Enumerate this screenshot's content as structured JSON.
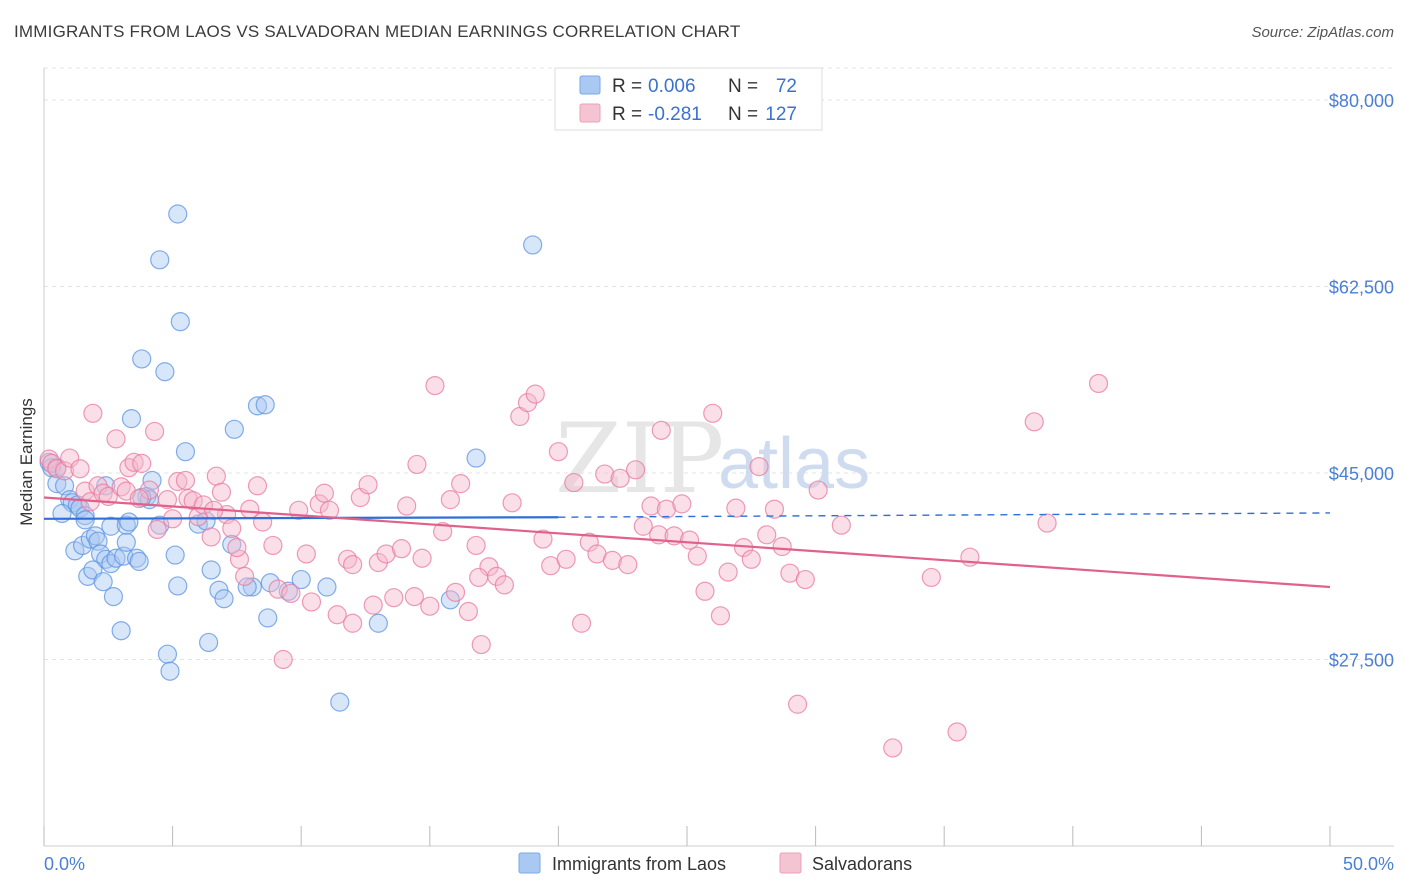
{
  "header": {
    "title": "IMMIGRANTS FROM LAOS VS SALVADORAN MEDIAN EARNINGS CORRELATION CHART",
    "source": "Source: ZipAtlas.com"
  },
  "watermark": {
    "zip": "ZIP",
    "atlas": "atlas"
  },
  "legend": {
    "rows": [
      {
        "r_label": "R =",
        "r_value": "0.006",
        "n_label": "N =",
        "n_value": "72",
        "color": "#a9c8f2"
      },
      {
        "r_label": "R =",
        "r_value": "-0.281",
        "n_label": "N =",
        "n_value": "127",
        "color": "#f5b8cb"
      }
    ]
  },
  "bottom_legend": {
    "items": [
      {
        "label": "Immigrants from Laos",
        "color": "#a9c8f2"
      },
      {
        "label": "Salvadorans",
        "color": "#f5b8cb"
      }
    ]
  },
  "chart_data": {
    "type": "scatter",
    "title": "IMMIGRANTS FROM LAOS VS SALVADORAN MEDIAN EARNINGS CORRELATION CHART",
    "xlabel": "",
    "ylabel": "Median Earnings",
    "xlim": [
      0,
      50
    ],
    "ylim": [
      10000,
      83000
    ],
    "x_tick_labels": [
      "0.0%",
      "50.0%"
    ],
    "y_ticks": [
      27500,
      45000,
      62500,
      80000
    ],
    "y_tick_labels": [
      "$27,500",
      "$45,000",
      "$62,500",
      "$80,000"
    ],
    "grid": true,
    "legend_position": "top-center",
    "series": [
      {
        "name": "Immigrants from Laos",
        "color": "#5b93e0",
        "fill": "#a9c8f2",
        "line_color": "#2f6fd6",
        "trend": {
          "x1": 0,
          "y1": 40700,
          "x2": 20,
          "y2": 40850,
          "dash_to_x": 50,
          "dash_to_y": 41250
        },
        "points": [
          [
            0.2,
            46000
          ],
          [
            0.3,
            45500
          ],
          [
            0.5,
            45500
          ],
          [
            0.5,
            44000
          ],
          [
            0.8,
            43800
          ],
          [
            1.0,
            42500
          ],
          [
            1.1,
            42200
          ],
          [
            1.3,
            42000
          ],
          [
            1.4,
            41700
          ],
          [
            0.7,
            41200
          ],
          [
            1.6,
            41000
          ],
          [
            1.2,
            37700
          ],
          [
            1.5,
            38200
          ],
          [
            1.8,
            38800
          ],
          [
            2.0,
            39100
          ],
          [
            2.1,
            38600
          ],
          [
            2.2,
            37400
          ],
          [
            2.4,
            36900
          ],
          [
            2.6,
            36500
          ],
          [
            2.8,
            37000
          ],
          [
            3.1,
            37200
          ],
          [
            3.2,
            38500
          ],
          [
            3.6,
            37000
          ],
          [
            3.7,
            36700
          ],
          [
            1.7,
            35300
          ],
          [
            1.9,
            35900
          ],
          [
            2.3,
            34800
          ],
          [
            2.7,
            33400
          ],
          [
            3.0,
            30200
          ],
          [
            2.6,
            40000
          ],
          [
            3.2,
            40100
          ],
          [
            3.3,
            40400
          ],
          [
            4.0,
            42800
          ],
          [
            4.1,
            42500
          ],
          [
            4.2,
            44300
          ],
          [
            4.5,
            40100
          ],
          [
            3.4,
            50100
          ],
          [
            3.8,
            55700
          ],
          [
            4.5,
            65000
          ],
          [
            4.7,
            54500
          ],
          [
            5.2,
            69300
          ],
          [
            5.3,
            59200
          ],
          [
            5.5,
            47000
          ],
          [
            5.1,
            37300
          ],
          [
            5.2,
            34400
          ],
          [
            4.8,
            28000
          ],
          [
            4.9,
            26400
          ],
          [
            6.0,
            40200
          ],
          [
            6.3,
            40500
          ],
          [
            6.5,
            35900
          ],
          [
            6.4,
            29100
          ],
          [
            6.8,
            34000
          ],
          [
            7.0,
            33200
          ],
          [
            7.3,
            38300
          ],
          [
            7.4,
            49100
          ],
          [
            8.1,
            34300
          ],
          [
            8.3,
            51300
          ],
          [
            8.6,
            51400
          ],
          [
            8.7,
            31400
          ],
          [
            8.8,
            34700
          ],
          [
            10.0,
            35000
          ],
          [
            11.0,
            34300
          ],
          [
            11.5,
            23500
          ],
          [
            13.0,
            30900
          ],
          [
            15.8,
            33100
          ],
          [
            16.8,
            46400
          ],
          [
            19.0,
            66400
          ],
          [
            7.9,
            34300
          ],
          [
            9.5,
            33900
          ],
          [
            2.4,
            43800
          ],
          [
            1.6,
            40600
          ],
          [
            3.8,
            42700
          ]
        ]
      },
      {
        "name": "Salvadorans",
        "color": "#e8799d",
        "fill": "#f5b8cb",
        "line_color": "#e0628b",
        "trend": {
          "x1": 0,
          "y1": 42700,
          "x2": 50,
          "y2": 34300
        },
        "points": [
          [
            0.2,
            46300
          ],
          [
            0.3,
            45900
          ],
          [
            0.5,
            45400
          ],
          [
            0.8,
            45200
          ],
          [
            1.0,
            46400
          ],
          [
            1.4,
            45400
          ],
          [
            1.6,
            43300
          ],
          [
            1.8,
            42300
          ],
          [
            1.9,
            50600
          ],
          [
            2.1,
            43800
          ],
          [
            2.3,
            43100
          ],
          [
            2.5,
            42800
          ],
          [
            2.8,
            48200
          ],
          [
            3.0,
            43700
          ],
          [
            3.2,
            43300
          ],
          [
            3.3,
            45500
          ],
          [
            3.5,
            46000
          ],
          [
            3.8,
            45900
          ],
          [
            4.1,
            43400
          ],
          [
            4.3,
            48900
          ],
          [
            4.4,
            39700
          ],
          [
            4.8,
            42500
          ],
          [
            5.0,
            40700
          ],
          [
            5.2,
            44200
          ],
          [
            5.5,
            44300
          ],
          [
            5.6,
            42600
          ],
          [
            5.8,
            42400
          ],
          [
            6.0,
            40900
          ],
          [
            6.2,
            42000
          ],
          [
            6.5,
            39000
          ],
          [
            6.7,
            44700
          ],
          [
            6.9,
            43200
          ],
          [
            7.1,
            41100
          ],
          [
            7.3,
            39800
          ],
          [
            7.6,
            36900
          ],
          [
            7.8,
            35300
          ],
          [
            8.0,
            41600
          ],
          [
            8.3,
            43800
          ],
          [
            8.5,
            40400
          ],
          [
            8.9,
            38200
          ],
          [
            9.1,
            34100
          ],
          [
            9.3,
            27500
          ],
          [
            9.6,
            33700
          ],
          [
            9.9,
            41500
          ],
          [
            10.2,
            37400
          ],
          [
            10.4,
            32900
          ],
          [
            10.7,
            42100
          ],
          [
            10.9,
            43100
          ],
          [
            11.1,
            41500
          ],
          [
            11.4,
            31700
          ],
          [
            11.8,
            36900
          ],
          [
            12.0,
            36400
          ],
          [
            12.3,
            42700
          ],
          [
            12.6,
            43900
          ],
          [
            12.8,
            32600
          ],
          [
            13.0,
            36600
          ],
          [
            13.3,
            37400
          ],
          [
            13.6,
            33300
          ],
          [
            13.9,
            37900
          ],
          [
            14.1,
            41900
          ],
          [
            14.4,
            33400
          ],
          [
            14.7,
            37000
          ],
          [
            15.0,
            32500
          ],
          [
            15.2,
            53200
          ],
          [
            15.5,
            39500
          ],
          [
            15.8,
            42500
          ],
          [
            16.0,
            33800
          ],
          [
            16.2,
            44000
          ],
          [
            16.5,
            32000
          ],
          [
            16.8,
            38200
          ],
          [
            17.0,
            28900
          ],
          [
            17.3,
            36200
          ],
          [
            17.6,
            35300
          ],
          [
            17.9,
            34500
          ],
          [
            18.2,
            42200
          ],
          [
            18.5,
            50300
          ],
          [
            18.8,
            51600
          ],
          [
            19.1,
            52400
          ],
          [
            19.4,
            38800
          ],
          [
            19.7,
            36300
          ],
          [
            20.0,
            47000
          ],
          [
            20.3,
            36900
          ],
          [
            20.6,
            44100
          ],
          [
            20.9,
            30900
          ],
          [
            21.2,
            38500
          ],
          [
            21.5,
            37400
          ],
          [
            21.8,
            44900
          ],
          [
            22.1,
            36800
          ],
          [
            22.4,
            44500
          ],
          [
            22.7,
            36400
          ],
          [
            23.0,
            45300
          ],
          [
            23.3,
            40000
          ],
          [
            23.6,
            41900
          ],
          [
            23.9,
            39200
          ],
          [
            24.2,
            41600
          ],
          [
            24.5,
            39100
          ],
          [
            24.8,
            42100
          ],
          [
            25.1,
            38700
          ],
          [
            25.4,
            37200
          ],
          [
            25.7,
            33900
          ],
          [
            26.0,
            50600
          ],
          [
            26.3,
            31600
          ],
          [
            26.6,
            35700
          ],
          [
            26.9,
            41700
          ],
          [
            27.2,
            38000
          ],
          [
            27.5,
            36900
          ],
          [
            27.8,
            45600
          ],
          [
            28.1,
            39200
          ],
          [
            28.4,
            41600
          ],
          [
            28.7,
            38100
          ],
          [
            29.0,
            35600
          ],
          [
            29.3,
            23300
          ],
          [
            29.6,
            35000
          ],
          [
            30.1,
            43400
          ],
          [
            31.0,
            40100
          ],
          [
            33.0,
            19200
          ],
          [
            34.5,
            35200
          ],
          [
            35.5,
            20700
          ],
          [
            36.0,
            37100
          ],
          [
            38.5,
            49800
          ],
          [
            39.0,
            40300
          ],
          [
            41.0,
            53400
          ],
          [
            24.0,
            49000
          ],
          [
            14.5,
            45800
          ],
          [
            7.5,
            38000
          ],
          [
            3.7,
            42600
          ],
          [
            12.0,
            30900
          ],
          [
            16.9,
            35200
          ],
          [
            6.6,
            41500
          ]
        ]
      }
    ]
  }
}
